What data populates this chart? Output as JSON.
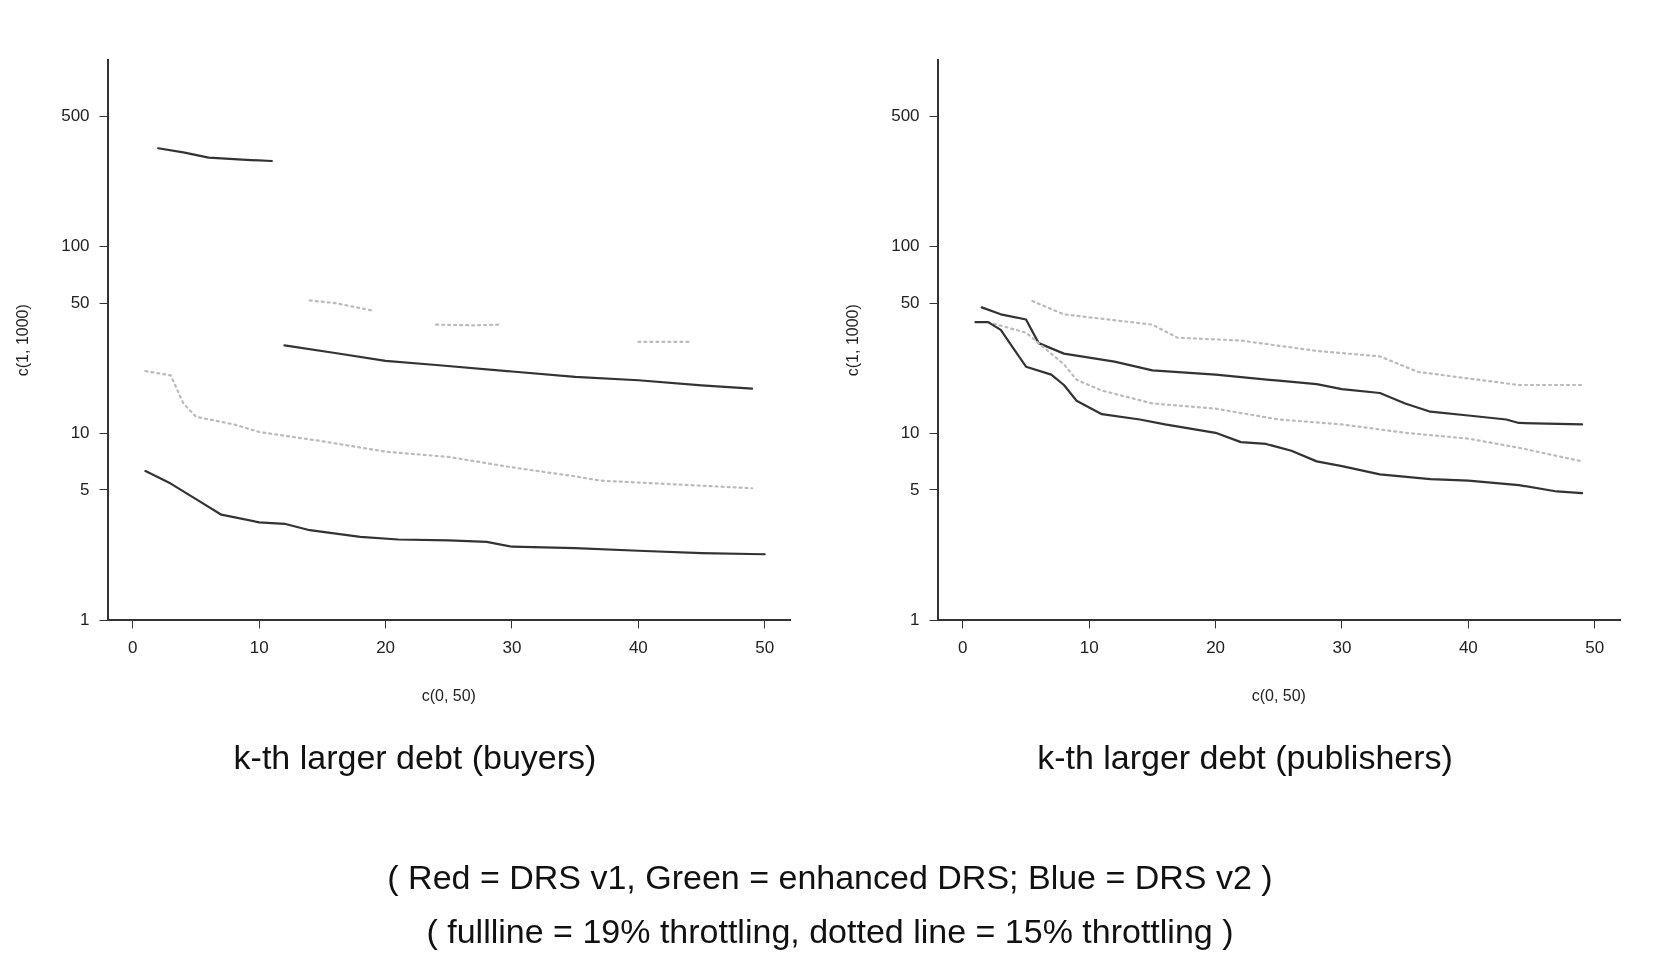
{
  "chart_data": [
    {
      "type": "line",
      "title": "k-th larger debt (buyers)",
      "xlabel": "c(0, 50)",
      "ylabel": "c(1, 1000)",
      "log": "y",
      "grid": false,
      "legend": false,
      "marker": "none",
      "xlim": [
        -2,
        52
      ],
      "xticks": [
        0,
        10,
        20,
        30,
        40,
        50
      ],
      "ylim": [
        1,
        1000
      ],
      "yticks": [
        1,
        5,
        10,
        50,
        100,
        500
      ],
      "annotations": [
        "( Red = DRS v1, Green = enhanced DRS; Blue = DRS v2 )",
        "( fullline = 19% throttling, dotted line = 15% throttling )"
      ],
      "series": [
        {
          "color": "#333333",
          "line_style": "solid",
          "x": [
            2,
            4,
            6,
            9,
            11
          ],
          "values": [
            337,
            320,
            300,
            292,
            288
          ]
        },
        {
          "color": "#bbbbbb",
          "line_style": "dotted",
          "x": [
            14,
            16,
            19
          ],
          "values": [
            51.6,
            50,
            45.5
          ]
        },
        {
          "color": "#bbbbbb",
          "line_style": "dotted",
          "x": [
            24,
            27,
            29
          ],
          "values": [
            38.3,
            38,
            38.3
          ]
        },
        {
          "color": "#bbbbbb",
          "line_style": "dotted",
          "x": [
            40,
            42,
            44
          ],
          "values": [
            31,
            31,
            31
          ]
        },
        {
          "color": "#333333",
          "line_style": "solid",
          "x": [
            12,
            16,
            20,
            24,
            30,
            35,
            40,
            45,
            49
          ],
          "values": [
            29.7,
            27,
            24.5,
            23.3,
            21.5,
            20.1,
            19.3,
            18.1,
            17.4
          ]
        },
        {
          "color": "#bbbbbb",
          "line_style": "dotted",
          "x": [
            1,
            3,
            4,
            5,
            8,
            10,
            15,
            20,
            25,
            30,
            35,
            37,
            49
          ],
          "values": [
            21.6,
            20.5,
            14.5,
            12.3,
            11.2,
            10.2,
            9.1,
            8,
            7.5,
            6.6,
            5.9,
            5.6,
            5.1
          ]
        },
        {
          "color": "#333333",
          "line_style": "solid",
          "x": [
            1,
            3,
            5,
            7,
            10,
            12,
            14,
            18,
            21,
            25,
            28,
            30,
            35,
            40,
            45,
            50
          ],
          "values": [
            6.3,
            5.4,
            4.46,
            3.68,
            3.35,
            3.29,
            3.04,
            2.8,
            2.71,
            2.68,
            2.63,
            2.48,
            2.44,
            2.36,
            2.29,
            2.26
          ]
        }
      ]
    },
    {
      "type": "line",
      "title": "k-th larger debt (publishers)",
      "xlabel": "c(0, 50)",
      "ylabel": "c(1, 1000)",
      "log": "y",
      "grid": false,
      "legend": false,
      "marker": "none",
      "xlim": [
        -2,
        52
      ],
      "xticks": [
        0,
        10,
        20,
        30,
        40,
        50
      ],
      "ylim": [
        1,
        1000
      ],
      "yticks": [
        1,
        5,
        10,
        50,
        100,
        500
      ],
      "series": [
        {
          "color": "#333333",
          "line_style": "solid",
          "x": [
            1.5,
            3,
            5,
            6,
            8,
            12,
            15,
            20,
            25,
            28,
            30,
            33,
            35,
            37,
            40,
            43,
            44,
            49
          ],
          "values": [
            47.4,
            43.5,
            40.8,
            30.5,
            26.8,
            24.3,
            21.8,
            20.7,
            19.2,
            18.4,
            17.3,
            16.5,
            14.5,
            13.1,
            12.5,
            11.9,
            11.4,
            11.2
          ]
        },
        {
          "color": "#bbbbbb",
          "line_style": "dotted",
          "x": [
            5.5,
            8,
            15,
            17,
            22,
            28,
            33,
            36,
            44,
            49
          ],
          "values": [
            51.2,
            43.5,
            38.3,
            32.6,
            31.5,
            27.7,
            25.9,
            21.4,
            18.2,
            18.2
          ]
        },
        {
          "color": "#bbbbbb",
          "line_style": "dotted",
          "x": [
            2,
            5,
            8,
            9,
            11,
            15,
            20,
            25,
            30,
            35,
            40,
            44,
            49
          ],
          "values": [
            39.5,
            34.7,
            23.5,
            19.4,
            17,
            14.5,
            13.6,
            11.9,
            11.2,
            10.1,
            9.4,
            8.4,
            7.1
          ]
        },
        {
          "color": "#333333",
          "line_style": "solid",
          "x": [
            1,
            2,
            3,
            4,
            5,
            7,
            8,
            9,
            11,
            14,
            16,
            20,
            22,
            24,
            26,
            28,
            30,
            33,
            37,
            40,
            44,
            47,
            49
          ],
          "values": [
            39.5,
            39.5,
            35.9,
            28.6,
            22.8,
            20.7,
            18.2,
            15,
            12.7,
            11.9,
            11.2,
            10.1,
            9,
            8.8,
            8.1,
            7.1,
            6.7,
            6.05,
            5.7,
            5.6,
            5.3,
            4.9,
            4.8
          ]
        }
      ]
    }
  ]
}
